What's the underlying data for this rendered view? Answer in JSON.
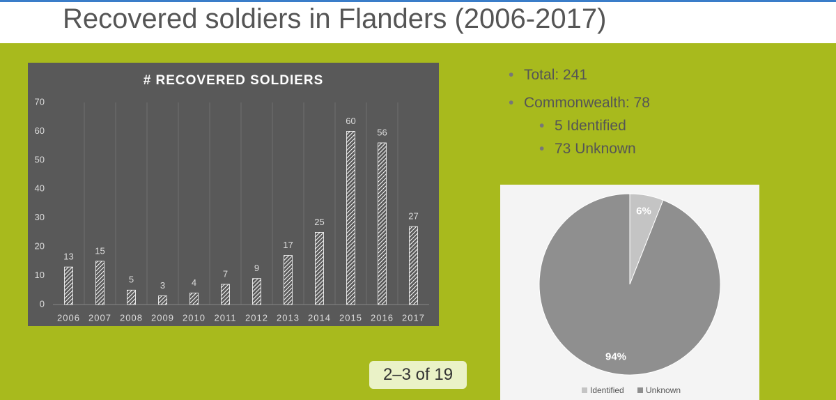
{
  "header": {
    "title": "Recovered soldiers in Flanders (2006-2017)"
  },
  "bullets": [
    "Total: 241",
    "Commonwealth: 78"
  ],
  "sub_bullets": [
    "5 Identified",
    "73 Unknown"
  ],
  "badge": "2–3 of 19",
  "chart_data": [
    {
      "type": "bar",
      "title": "# RECOVERED SOLDIERS",
      "categories": [
        "2006",
        "2007",
        "2008",
        "2009",
        "2010",
        "2011",
        "2012",
        "2013",
        "2014",
        "2015",
        "2016",
        "2017"
      ],
      "values": [
        13,
        15,
        5,
        3,
        4,
        7,
        9,
        17,
        25,
        60,
        56,
        27
      ],
      "color": "#ffffff",
      "ylim": [
        0,
        70
      ],
      "yticks": [
        0,
        10,
        20,
        30,
        40,
        50,
        60,
        70
      ]
    },
    {
      "type": "pie",
      "categories": [
        "Identified",
        "Unknown"
      ],
      "values": [
        6,
        94
      ],
      "value_labels": [
        "6%",
        "94%"
      ],
      "colors": [
        "#c4c4c4",
        "#8f8f8f"
      ],
      "legend": "bottom"
    }
  ]
}
